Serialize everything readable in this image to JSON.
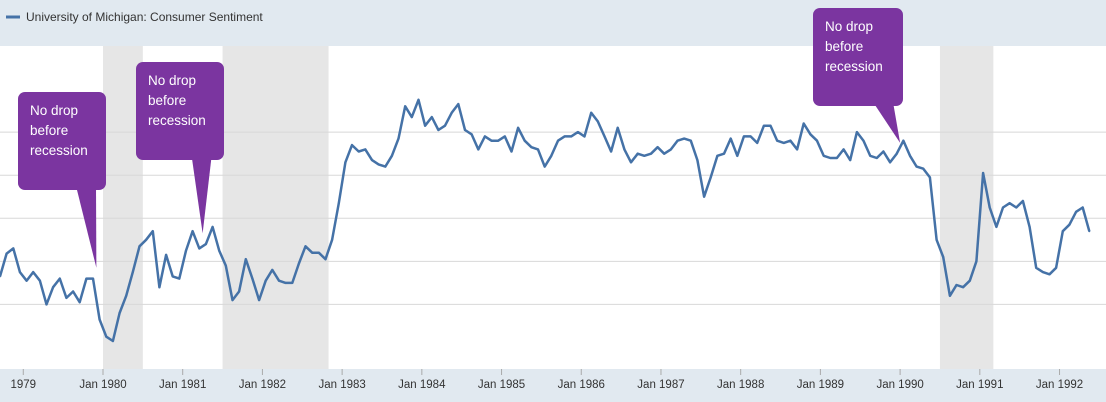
{
  "colors": {
    "series": "#4572a7",
    "header_bg": "#e1e9f0",
    "recession": "#e6e6e6",
    "grid": "#d8d8d8",
    "callout": "#7b35a0"
  },
  "legend": {
    "label": "University of Michigan: Consumer Sentiment",
    "placement": "top-left"
  },
  "chart_data": {
    "type": "line",
    "title": "University of Michigan: Consumer Sentiment",
    "xlabel": "",
    "ylabel": "",
    "frequency": "monthly",
    "x_start": 1978.708,
    "x_step": 0.08333,
    "xlim": [
      1978.708,
      1992.583
    ],
    "ylim": [
      45,
      120
    ],
    "grid": true,
    "x_ticks": [
      {
        "value": 1979,
        "label": "1979"
      },
      {
        "value": 1980,
        "label": "Jan 1980"
      },
      {
        "value": 1981,
        "label": "Jan 1981"
      },
      {
        "value": 1982,
        "label": "Jan 1982"
      },
      {
        "value": 1983,
        "label": "Jan 1983"
      },
      {
        "value": 1984,
        "label": "Jan 1984"
      },
      {
        "value": 1985,
        "label": "Jan 1985"
      },
      {
        "value": 1986,
        "label": "Jan 1986"
      },
      {
        "value": 1987,
        "label": "Jan 1987"
      },
      {
        "value": 1988,
        "label": "Jan 1988"
      },
      {
        "value": 1989,
        "label": "Jan 1989"
      },
      {
        "value": 1990,
        "label": "Jan 1990"
      },
      {
        "value": 1991,
        "label": "Jan 1991"
      },
      {
        "value": 1992,
        "label": "Jan 1992"
      }
    ],
    "y_gridlines": [
      60,
      70,
      80,
      90,
      100
    ],
    "recessions": [
      {
        "start": 1980.0,
        "end": 1980.5
      },
      {
        "start": 1981.5,
        "end": 1982.83
      },
      {
        "start": 1990.5,
        "end": 1991.17
      }
    ],
    "series": [
      {
        "name": "University of Michigan: Consumer Sentiment",
        "values": [
          66.5,
          71.8,
          73.0,
          67.5,
          65.5,
          67.5,
          65.5,
          60.0,
          64.0,
          66.0,
          61.5,
          63.0,
          60.5,
          66.0,
          66.0,
          56.5,
          52.5,
          51.5,
          58.0,
          62.0,
          67.5,
          73.5,
          75.0,
          77.0,
          64.0,
          71.5,
          66.5,
          66.0,
          72.5,
          77.0,
          73.0,
          74.0,
          78.0,
          72.5,
          69.0,
          61.0,
          63.0,
          70.5,
          66.0,
          61.0,
          65.5,
          68.0,
          65.5,
          65.0,
          65.0,
          69.5,
          73.5,
          72.0,
          72.0,
          70.5,
          75.0,
          83.5,
          93.0,
          97.0,
          95.5,
          96.0,
          93.5,
          92.5,
          92.0,
          94.5,
          98.5,
          106.0,
          103.5,
          107.5,
          101.5,
          103.5,
          100.5,
          101.5,
          104.5,
          106.5,
          100.5,
          99.5,
          96.0,
          99.0,
          98.0,
          98.0,
          99.0,
          95.5,
          101.0,
          98.0,
          96.5,
          96.0,
          92.0,
          94.5,
          98.0,
          99.0,
          99.0,
          100.0,
          99.0,
          104.5,
          102.5,
          99.0,
          95.5,
          101.0,
          96.0,
          93.0,
          95.0,
          94.5,
          95.0,
          96.5,
          95.0,
          96.0,
          98.0,
          98.5,
          98.0,
          93.5,
          85.0,
          89.5,
          94.5,
          95.0,
          98.5,
          94.5,
          99.0,
          99.0,
          97.5,
          101.5,
          101.5,
          98.0,
          97.5,
          98.0,
          96.0,
          102.0,
          99.5,
          98.0,
          94.5,
          94.0,
          94.0,
          96.0,
          93.5,
          100.0,
          98.0,
          94.5,
          94.0,
          95.5,
          93.0,
          95.0,
          98.0,
          94.5,
          92.0,
          91.5,
          89.5,
          75.0,
          71.0,
          62.0,
          64.5,
          64.0,
          65.5,
          70.0,
          90.5,
          82.5,
          78.0,
          82.5,
          83.5,
          82.5,
          84.0,
          78.0,
          68.5,
          67.5,
          67.0,
          68.5,
          77.0,
          78.5,
          81.5,
          82.5,
          77.0
        ]
      }
    ],
    "annotations": [
      {
        "text": "No drop before recession",
        "lines": [
          "No drop",
          "before",
          "recession"
        ],
        "target_x": 1979.917,
        "target_y": 68.5
      },
      {
        "text": "No drop before recession",
        "lines": [
          "No drop",
          "before",
          "recession"
        ],
        "target_x": 1981.25,
        "target_y": 76.5
      },
      {
        "text": "No drop before recession",
        "lines": [
          "No drop",
          "before",
          "recession"
        ],
        "target_x": 1990.0,
        "target_y": 97.5
      }
    ]
  }
}
